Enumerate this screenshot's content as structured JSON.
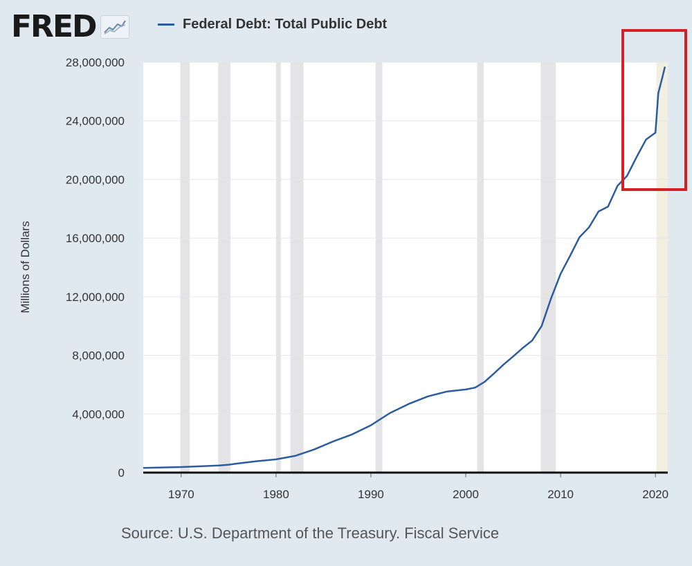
{
  "logo": {
    "text": "FRED",
    "icon": "line-chart-icon"
  },
  "colors": {
    "series": "#2c5b9e",
    "recession": "#e4e4e6",
    "highlight": "#d61f26",
    "background": "#e1e9f0"
  },
  "source": "Source: U.S. Department of the Treasury. Fiscal Service",
  "chart_data": {
    "type": "line",
    "title": "",
    "xlabel": "",
    "ylabel": "Millions of Dollars",
    "xlim": [
      1966,
      2021.3
    ],
    "ylim": [
      0,
      28000000
    ],
    "x_ticks": [
      1970,
      1980,
      1990,
      2000,
      2010,
      2020
    ],
    "y_ticks": [
      0,
      4000000,
      8000000,
      12000000,
      16000000,
      20000000,
      24000000,
      28000000
    ],
    "y_tick_labels": [
      "0",
      "4,000,000",
      "8,000,000",
      "12,000,000",
      "16,000,000",
      "20,000,000",
      "24,000,000",
      "28,000,000"
    ],
    "grid": true,
    "legend_position": "top",
    "series": [
      {
        "name": "Federal Debt: Total Public Debt",
        "points": [
          [
            1966,
            320000
          ],
          [
            1968,
            350000
          ],
          [
            1970,
            380000
          ],
          [
            1972,
            430000
          ],
          [
            1974,
            480000
          ],
          [
            1975,
            540000
          ],
          [
            1976,
            630000
          ],
          [
            1978,
            780000
          ],
          [
            1980,
            900000
          ],
          [
            1982,
            1140000
          ],
          [
            1984,
            1570000
          ],
          [
            1986,
            2120000
          ],
          [
            1988,
            2600000
          ],
          [
            1990,
            3230000
          ],
          [
            1992,
            4060000
          ],
          [
            1994,
            4690000
          ],
          [
            1996,
            5200000
          ],
          [
            1998,
            5530000
          ],
          [
            2000,
            5670000
          ],
          [
            2001,
            5800000
          ],
          [
            2002,
            6200000
          ],
          [
            2003,
            6780000
          ],
          [
            2004,
            7380000
          ],
          [
            2005,
            7930000
          ],
          [
            2006,
            8500000
          ],
          [
            2007,
            9010000
          ],
          [
            2008,
            10000000
          ],
          [
            2009,
            11900000
          ],
          [
            2010,
            13560000
          ],
          [
            2011,
            14790000
          ],
          [
            2012,
            16070000
          ],
          [
            2013,
            16740000
          ],
          [
            2014,
            17820000
          ],
          [
            2015,
            18150000
          ],
          [
            2016,
            19570000
          ],
          [
            2017,
            20240000
          ],
          [
            2018,
            21520000
          ],
          [
            2019,
            22720000
          ],
          [
            2020.0,
            23200000
          ],
          [
            2020.3,
            25900000
          ],
          [
            2020.7,
            26900000
          ],
          [
            2021.0,
            27700000
          ]
        ]
      }
    ],
    "recessions": [
      [
        1969.9,
        1970.9
      ],
      [
        1973.9,
        1975.2
      ],
      [
        1980.0,
        1980.5
      ],
      [
        1981.5,
        1982.9
      ],
      [
        1990.5,
        1991.2
      ],
      [
        2001.2,
        2001.9
      ],
      [
        2007.9,
        2009.5
      ],
      [
        2020.1,
        2021.3
      ]
    ]
  }
}
